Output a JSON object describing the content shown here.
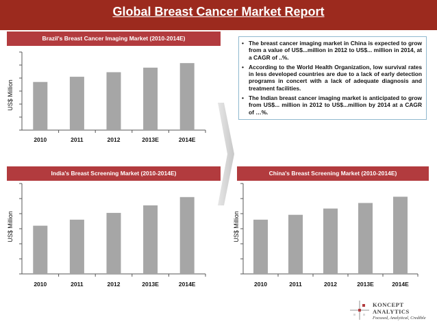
{
  "header": {
    "title": "Global Breast Cancer Market Report"
  },
  "bullets": [
    "The breast cancer imaging market in China is expected to grow from a value of US$...million in 2012 to US$... million in 2014, at a CAGR of ..%.",
    "According to the World Health Organization, low survival rates in less developed countries are due to a lack of early detection programs in concert with a lack of adequate diagnosis and treatment facilities.",
    "The Indian breast cancer imaging market is anticipated to grow from US$... million in 2012 to US$...million by 2014 at a CAGR of …%."
  ],
  "bullet_symbol": "•",
  "logo": {
    "name_line1": "KONCEPT",
    "name_line2": "ANALYTICS",
    "tagline": "Focused, Analytical, Credible"
  },
  "colors": {
    "header": "#9c2a1e",
    "chart_title_bar": "#b23b3e",
    "bar": "#a6a6a6",
    "accent": "#b23b3e"
  },
  "chart_data": [
    {
      "type": "bar",
      "title": "Brazil's Breast Cancer Imaging Market (2010-2014E)",
      "ylabel": "US$ Million",
      "categories": [
        "2010",
        "2011",
        "2012",
        "2013E",
        "2014E"
      ],
      "values": [
        3.7,
        4.1,
        4.45,
        4.8,
        5.15
      ],
      "ylim": [
        0,
        6
      ],
      "yticks": 6
    },
    {
      "type": "bar",
      "title": "India's Breast Screening Market (2010-2014E)",
      "ylabel": "US$ Million",
      "categories": [
        "2010",
        "2011",
        "2012",
        "2013E",
        "2014E"
      ],
      "values": [
        3.2,
        3.6,
        4.05,
        4.55,
        5.1
      ],
      "ylim": [
        0,
        6
      ],
      "yticks": 6
    },
    {
      "type": "bar",
      "title": "China's Breast Screening Market (2010-2014E)",
      "ylabel": "US$ Million",
      "categories": [
        "2010",
        "2011",
        "2012",
        "2013E",
        "2014E"
      ],
      "values": [
        3.9,
        4.25,
        4.7,
        5.1,
        5.55
      ],
      "ylim": [
        0,
        6.5
      ],
      "yticks": 6
    }
  ]
}
